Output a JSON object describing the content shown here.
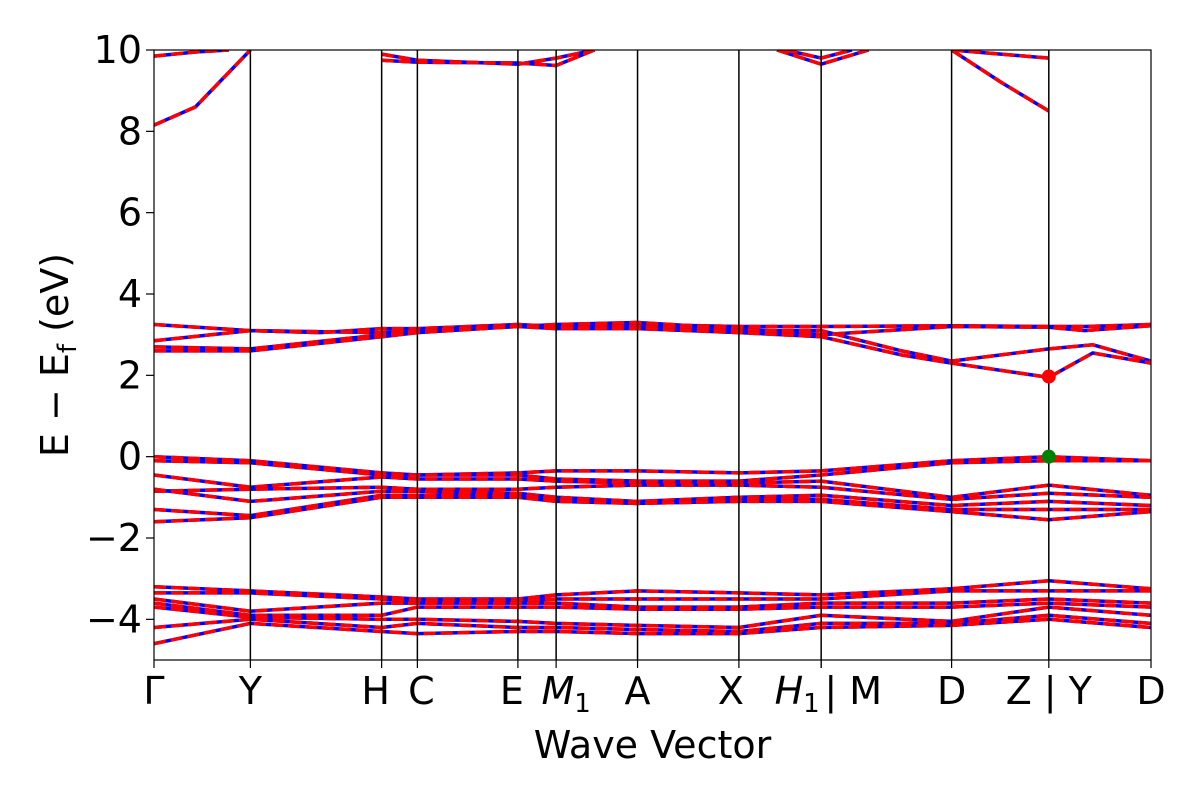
{
  "chart_data": {
    "type": "line",
    "xlabel": "Wave Vector",
    "ylabel": "E − E_f (eV)",
    "ylim": [
      -5,
      10
    ],
    "xlim": [
      0,
      12.0
    ],
    "yticks": [
      -4,
      -2,
      0,
      2,
      4,
      6,
      8,
      10
    ],
    "ytick_labels": [
      "−4",
      "−2",
      "0",
      "2",
      "4",
      "6",
      "8",
      "10"
    ],
    "kpoints": [
      {
        "x": 0.0,
        "label": "Γ",
        "sub": ""
      },
      {
        "x": 1.16,
        "label": "Y",
        "sub": ""
      },
      {
        "x": 2.74,
        "label": "H",
        "sub": ""
      },
      {
        "x": 3.17,
        "label": "C",
        "sub": ""
      },
      {
        "x": 4.38,
        "label": "E",
        "sub": ""
      },
      {
        "x": 4.84,
        "label": "M",
        "sub": "1"
      },
      {
        "x": 5.82,
        "label": "A",
        "sub": ""
      },
      {
        "x": 7.04,
        "label": "X",
        "sub": ""
      },
      {
        "x": 8.03,
        "label": "H",
        "sub": "1"
      },
      {
        "x": 8.03,
        "label": "| M",
        "sub": ""
      },
      {
        "x": 9.6,
        "label": "D",
        "sub": ""
      },
      {
        "x": 10.77,
        "label": "Z | Y",
        "sub": ""
      },
      {
        "x": 12.0,
        "label": "D",
        "sub": ""
      }
    ],
    "series_colors": {
      "spin_up": "#ff0000",
      "spin_down": "#0000ff"
    },
    "band_groups": {
      "conduction_high": [
        [
          [
            0,
            8.15
          ],
          [
            0.5,
            8.6
          ],
          [
            1.16,
            10.0
          ]
        ],
        [
          [
            0,
            9.85
          ],
          [
            0.5,
            9.95
          ],
          [
            0.9,
            10.0
          ]
        ],
        [
          [
            2.74,
            9.9
          ],
          [
            3.17,
            9.75
          ],
          [
            4.38,
            9.65
          ],
          [
            4.84,
            9.8
          ],
          [
            5.3,
            10.0
          ]
        ],
        [
          [
            2.74,
            9.75
          ],
          [
            3.17,
            9.7
          ],
          [
            4.38,
            9.68
          ],
          [
            4.84,
            9.62
          ],
          [
            5.3,
            10.0
          ]
        ],
        [
          [
            7.5,
            10.0
          ],
          [
            8.03,
            9.65
          ],
          [
            8.6,
            10.0
          ]
        ],
        [
          [
            7.6,
            10.0
          ],
          [
            8.03,
            9.8
          ],
          [
            8.4,
            10.0
          ]
        ],
        [
          [
            9.6,
            10.0
          ],
          [
            10.2,
            9.2
          ],
          [
            10.77,
            8.5
          ]
        ],
        [
          [
            9.6,
            10.0
          ],
          [
            10.77,
            9.8
          ]
        ]
      ],
      "conduction_low": [
        [
          [
            0,
            3.25
          ],
          [
            1.16,
            3.1
          ],
          [
            2.0,
            3.05
          ],
          [
            2.74,
            3.15
          ],
          [
            3.17,
            3.15
          ],
          [
            4.38,
            3.25
          ],
          [
            4.84,
            3.2
          ],
          [
            5.82,
            3.25
          ],
          [
            7.04,
            3.2
          ],
          [
            8.03,
            3.2
          ],
          [
            9.6,
            3.22
          ],
          [
            10.77,
            3.2
          ],
          [
            11.2,
            3.2
          ],
          [
            12.0,
            3.25
          ]
        ],
        [
          [
            0,
            2.85
          ],
          [
            1.16,
            3.1
          ],
          [
            2.74,
            3.05
          ],
          [
            3.17,
            3.1
          ],
          [
            4.38,
            3.2
          ],
          [
            4.84,
            3.25
          ],
          [
            5.82,
            3.3
          ],
          [
            7.04,
            3.15
          ],
          [
            8.03,
            3.0
          ],
          [
            9.6,
            3.2
          ],
          [
            10.77,
            3.18
          ],
          [
            11.2,
            3.1
          ],
          [
            12.0,
            3.22
          ]
        ],
        [
          [
            0,
            2.7
          ],
          [
            1.16,
            2.65
          ],
          [
            2.74,
            3.0
          ],
          [
            3.17,
            3.1
          ],
          [
            4.38,
            3.22
          ],
          [
            4.84,
            3.18
          ],
          [
            5.82,
            3.2
          ],
          [
            7.04,
            3.1
          ],
          [
            8.03,
            3.1
          ],
          [
            9.0,
            2.6
          ],
          [
            9.6,
            2.35
          ],
          [
            10.77,
            2.65
          ],
          [
            11.3,
            2.75
          ],
          [
            12.0,
            2.35
          ]
        ],
        [
          [
            0,
            2.6
          ],
          [
            1.16,
            2.6
          ],
          [
            2.74,
            2.95
          ],
          [
            3.17,
            3.05
          ],
          [
            4.38,
            3.2
          ],
          [
            4.84,
            3.15
          ],
          [
            5.82,
            3.15
          ],
          [
            7.04,
            3.05
          ],
          [
            8.03,
            2.95
          ],
          [
            9.0,
            2.5
          ],
          [
            9.6,
            2.3
          ],
          [
            10.77,
            1.95
          ],
          [
            11.3,
            2.55
          ],
          [
            12.0,
            2.3
          ]
        ]
      ],
      "valence_top": [
        [
          [
            0,
            0.0
          ],
          [
            1.16,
            -0.1
          ],
          [
            2.74,
            -0.4
          ],
          [
            3.17,
            -0.45
          ],
          [
            4.38,
            -0.4
          ],
          [
            4.84,
            -0.35
          ],
          [
            5.82,
            -0.35
          ],
          [
            7.04,
            -0.4
          ],
          [
            8.03,
            -0.35
          ],
          [
            9.6,
            -0.1
          ],
          [
            10.77,
            0.0
          ],
          [
            12.0,
            -0.1
          ]
        ],
        [
          [
            0,
            -0.1
          ],
          [
            1.16,
            -0.15
          ],
          [
            2.74,
            -0.45
          ],
          [
            3.17,
            -0.45
          ],
          [
            4.38,
            -0.45
          ],
          [
            4.84,
            -0.55
          ],
          [
            5.82,
            -0.6
          ],
          [
            7.04,
            -0.6
          ],
          [
            8.03,
            -0.45
          ],
          [
            9.6,
            -0.15
          ],
          [
            10.77,
            -0.1
          ],
          [
            12.0,
            -0.1
          ]
        ],
        [
          [
            0,
            -0.45
          ],
          [
            1.16,
            -0.75
          ],
          [
            2.74,
            -0.5
          ],
          [
            3.17,
            -0.55
          ],
          [
            4.38,
            -0.55
          ],
          [
            4.84,
            -0.6
          ],
          [
            5.82,
            -0.65
          ],
          [
            7.04,
            -0.65
          ],
          [
            8.03,
            -0.6
          ],
          [
            9.6,
            -1.0
          ],
          [
            10.77,
            -0.7
          ],
          [
            12.0,
            -0.95
          ]
        ],
        [
          [
            0,
            -0.85
          ],
          [
            1.16,
            -0.8
          ],
          [
            2.74,
            -0.75
          ],
          [
            3.17,
            -0.8
          ],
          [
            4.38,
            -0.8
          ],
          [
            4.84,
            -0.75
          ],
          [
            5.82,
            -0.7
          ],
          [
            7.04,
            -0.7
          ],
          [
            8.03,
            -0.75
          ],
          [
            9.6,
            -1.05
          ],
          [
            10.77,
            -0.9
          ],
          [
            12.0,
            -1.0
          ]
        ],
        [
          [
            0,
            -0.8
          ],
          [
            1.16,
            -1.1
          ],
          [
            2.74,
            -0.85
          ],
          [
            3.17,
            -0.85
          ],
          [
            4.38,
            -0.9
          ],
          [
            4.84,
            -1.0
          ],
          [
            5.82,
            -1.1
          ],
          [
            7.04,
            -1.0
          ],
          [
            8.03,
            -0.95
          ],
          [
            9.6,
            -1.2
          ],
          [
            10.77,
            -1.1
          ],
          [
            12.0,
            -1.2
          ]
        ],
        [
          [
            0,
            -1.3
          ],
          [
            1.16,
            -1.45
          ],
          [
            2.74,
            -0.95
          ],
          [
            3.17,
            -0.95
          ],
          [
            4.38,
            -0.95
          ],
          [
            4.84,
            -1.05
          ],
          [
            5.82,
            -1.15
          ],
          [
            7.04,
            -1.05
          ],
          [
            8.03,
            -1.05
          ],
          [
            9.6,
            -1.3
          ],
          [
            10.77,
            -1.3
          ],
          [
            12.0,
            -1.3
          ]
        ],
        [
          [
            0,
            -1.6
          ],
          [
            1.16,
            -1.5
          ],
          [
            2.74,
            -1.0
          ],
          [
            3.17,
            -1.0
          ],
          [
            4.38,
            -1.0
          ],
          [
            4.84,
            -1.1
          ],
          [
            5.82,
            -1.15
          ],
          [
            7.04,
            -1.1
          ],
          [
            8.03,
            -1.1
          ],
          [
            9.6,
            -1.35
          ],
          [
            10.77,
            -1.55
          ],
          [
            12.0,
            -1.35
          ]
        ]
      ],
      "valence_low": [
        [
          [
            0,
            -3.2
          ],
          [
            1.16,
            -3.3
          ],
          [
            2.74,
            -3.45
          ],
          [
            3.17,
            -3.5
          ],
          [
            4.38,
            -3.5
          ],
          [
            4.84,
            -3.4
          ],
          [
            5.82,
            -3.3
          ],
          [
            7.04,
            -3.35
          ],
          [
            8.03,
            -3.4
          ],
          [
            9.6,
            -3.25
          ],
          [
            10.77,
            -3.05
          ],
          [
            12.0,
            -3.25
          ]
        ],
        [
          [
            0,
            -3.35
          ],
          [
            1.16,
            -3.35
          ],
          [
            2.74,
            -3.5
          ],
          [
            3.17,
            -3.55
          ],
          [
            4.38,
            -3.55
          ],
          [
            4.84,
            -3.5
          ],
          [
            5.82,
            -3.5
          ],
          [
            7.04,
            -3.5
          ],
          [
            8.03,
            -3.5
          ],
          [
            9.6,
            -3.3
          ],
          [
            10.77,
            -3.3
          ],
          [
            12.0,
            -3.3
          ]
        ],
        [
          [
            0,
            -3.5
          ],
          [
            1.16,
            -3.8
          ],
          [
            2.74,
            -3.6
          ],
          [
            3.17,
            -3.6
          ],
          [
            4.38,
            -3.6
          ],
          [
            4.84,
            -3.6
          ],
          [
            5.82,
            -3.7
          ],
          [
            7.04,
            -3.7
          ],
          [
            8.03,
            -3.6
          ],
          [
            9.6,
            -3.6
          ],
          [
            10.77,
            -3.5
          ],
          [
            12.0,
            -3.6
          ]
        ],
        [
          [
            0,
            -3.6
          ],
          [
            1.16,
            -3.9
          ],
          [
            2.74,
            -3.9
          ],
          [
            3.17,
            -3.7
          ],
          [
            4.38,
            -3.7
          ],
          [
            4.84,
            -3.7
          ],
          [
            5.82,
            -3.75
          ],
          [
            7.04,
            -3.75
          ],
          [
            8.03,
            -3.7
          ],
          [
            9.6,
            -3.7
          ],
          [
            10.77,
            -3.6
          ],
          [
            12.0,
            -3.7
          ]
        ],
        [
          [
            0,
            -3.7
          ],
          [
            1.16,
            -3.95
          ],
          [
            2.74,
            -4.0
          ],
          [
            3.17,
            -4.0
          ],
          [
            4.38,
            -4.05
          ],
          [
            4.84,
            -4.1
          ],
          [
            5.82,
            -4.15
          ],
          [
            7.04,
            -4.2
          ],
          [
            8.03,
            -3.9
          ],
          [
            9.6,
            -4.05
          ],
          [
            10.77,
            -3.7
          ],
          [
            12.0,
            -3.9
          ]
        ],
        [
          [
            0,
            -4.2
          ],
          [
            1.16,
            -4.0
          ],
          [
            2.74,
            -4.2
          ],
          [
            3.17,
            -4.1
          ],
          [
            4.38,
            -4.2
          ],
          [
            4.84,
            -4.2
          ],
          [
            5.82,
            -4.25
          ],
          [
            7.04,
            -4.3
          ],
          [
            8.03,
            -4.1
          ],
          [
            9.6,
            -4.1
          ],
          [
            10.77,
            -3.9
          ],
          [
            12.0,
            -4.1
          ]
        ],
        [
          [
            0,
            -4.6
          ],
          [
            1.16,
            -4.1
          ],
          [
            2.74,
            -4.3
          ],
          [
            3.17,
            -4.35
          ],
          [
            4.38,
            -4.3
          ],
          [
            4.84,
            -4.3
          ],
          [
            5.82,
            -4.35
          ],
          [
            7.04,
            -4.35
          ],
          [
            8.03,
            -4.2
          ],
          [
            9.6,
            -4.15
          ],
          [
            10.77,
            -4.0
          ],
          [
            12.0,
            -4.2
          ]
        ]
      ]
    },
    "markers": [
      {
        "name": "cbm-marker",
        "x": 10.77,
        "y": 1.97,
        "color": "#ff0000"
      },
      {
        "name": "vbm-marker",
        "x": 10.77,
        "y": 0.0,
        "color": "#008000"
      }
    ]
  }
}
